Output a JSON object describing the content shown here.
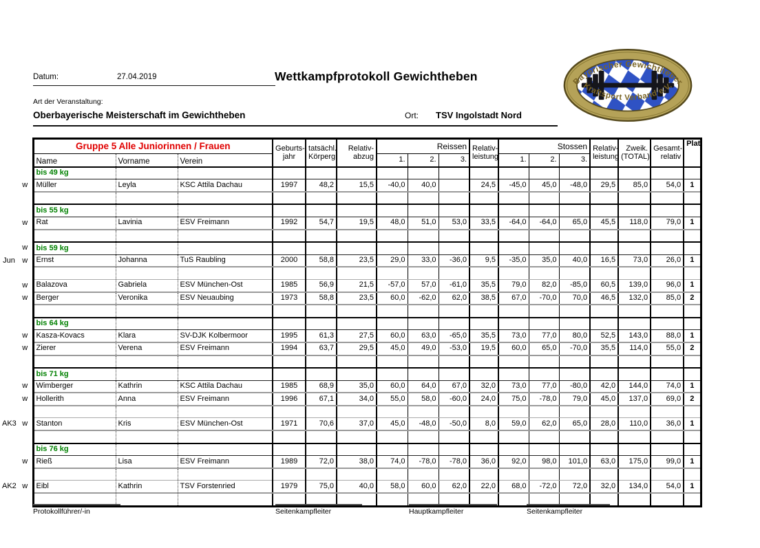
{
  "page": {
    "datum_label": "Datum:",
    "datum_value": "27.04.2019",
    "title": "Wettkampfprotokoll Gewichtheben",
    "art_label": "Art der Veranstaltung:",
    "art_value": "Oberbayerische Meisterschaft im Gewichtheben",
    "ort_label": "Ort:",
    "ort_value": "TSV Ingolstadt Nord"
  },
  "logo": {
    "top_text": "Bayerischer Gewichtheber",
    "bottom_text": "Kraftsport Verband e.V.",
    "colors": {
      "ring_gold": "#b5a258",
      "outline": "#55491c",
      "diamond_blue": "#2f52c4",
      "text_brown": "#7a6526",
      "barbell": "#15151b"
    }
  },
  "table": {
    "group_title": "Gruppe 5 Alle Juniorinnen / Frauen",
    "group_title_color": "#e00000",
    "section_color": "#008000",
    "headers": {
      "name": "Name",
      "vorname": "Vorname",
      "verein": "Verein",
      "jahr": "Geburts-\njahr",
      "gewicht": "tatsächl.\nKörperg.",
      "abzug": "Relativ-\nabzug",
      "reissen": "Reissen",
      "stossen": "Stossen",
      "attempts": [
        "1.",
        "2.",
        "3."
      ],
      "rrel": "Relativ-\nleistung",
      "srel": "Relativ-\nleistung",
      "total": "Zweik.\n(TOTAL)",
      "gesamt": "Gesamt-\nrelativ",
      "platz": "Platz"
    },
    "rows": [
      {
        "type": "section",
        "label": "bis 49 kg"
      },
      {
        "type": "athlete",
        "m2": "w",
        "name": "Müller",
        "vorname": "Leyla",
        "verein": "KSC Attila Dachau",
        "jahr": "1997",
        "gewicht": "48,2",
        "abzug": "15,5",
        "r1": "-40,0",
        "r2": "40,0",
        "r3": "",
        "rrel": "24,5",
        "s1": "-45,0",
        "s2": "45,0",
        "s3": "-48,0",
        "srel": "29,5",
        "total": "85,0",
        "gesamt": "54,0",
        "platz": "1"
      },
      {
        "type": "empty"
      },
      {
        "type": "section",
        "label": "bis 55 kg"
      },
      {
        "type": "athlete",
        "m2": "w",
        "name": "Rat",
        "vorname": "Lavinia",
        "verein": "ESV Freimann",
        "jahr": "1992",
        "gewicht": "54,7",
        "abzug": "19,5",
        "r1": "48,0",
        "r2": "51,0",
        "r3": "53,0",
        "rrel": "33,5",
        "s1": "-64,0",
        "s2": "-64,0",
        "s3": "65,0",
        "srel": "45,5",
        "total": "118,0",
        "gesamt": "79,0",
        "platz": "1"
      },
      {
        "type": "empty"
      },
      {
        "type": "section",
        "label": "bis 59 kg",
        "m2": "w"
      },
      {
        "type": "athlete",
        "m1": "Jun",
        "m2": "w",
        "name": "Ernst",
        "vorname": "Johanna",
        "verein": "TuS Raubling",
        "jahr": "2000",
        "gewicht": "58,8",
        "abzug": "23,5",
        "r1": "29,0",
        "r2": "33,0",
        "r3": "-36,0",
        "rrel": "9,5",
        "s1": "-35,0",
        "s2": "35,0",
        "s3": "40,0",
        "srel": "16,5",
        "total": "73,0",
        "gesamt": "26,0",
        "platz": "1"
      },
      {
        "type": "empty"
      },
      {
        "type": "athlete",
        "m2": "w",
        "name": "Balazova",
        "vorname": "Gabriela",
        "verein": "ESV München-Ost",
        "jahr": "1985",
        "gewicht": "56,9",
        "abzug": "21,5",
        "r1": "-57,0",
        "r2": "57,0",
        "r3": "-61,0",
        "rrel": "35,5",
        "s1": "79,0",
        "s2": "82,0",
        "s3": "-85,0",
        "srel": "60,5",
        "total": "139,0",
        "gesamt": "96,0",
        "platz": "1"
      },
      {
        "type": "athlete",
        "m2": "w",
        "name": "Berger",
        "vorname": "Veronika",
        "verein": "ESV Neuaubing",
        "jahr": "1973",
        "gewicht": "58,8",
        "abzug": "23,5",
        "r1": "60,0",
        "r2": "-62,0",
        "r3": "62,0",
        "rrel": "38,5",
        "s1": "67,0",
        "s2": "-70,0",
        "s3": "70,0",
        "srel": "46,5",
        "total": "132,0",
        "gesamt": "85,0",
        "platz": "2"
      },
      {
        "type": "empty"
      },
      {
        "type": "section",
        "label": "bis 64 kg"
      },
      {
        "type": "athlete",
        "m2": "w",
        "name": "Kasza-Kovacs",
        "vorname": "Klara",
        "verein": "SV-DJK Kolbermoor",
        "jahr": "1995",
        "gewicht": "61,3",
        "abzug": "27,5",
        "r1": "60,0",
        "r2": "63,0",
        "r3": "-65,0",
        "rrel": "35,5",
        "s1": "73,0",
        "s2": "77,0",
        "s3": "80,0",
        "srel": "52,5",
        "total": "143,0",
        "gesamt": "88,0",
        "platz": "1"
      },
      {
        "type": "athlete",
        "m2": "w",
        "name": "Zierer",
        "vorname": "Verena",
        "verein": "ESV Freimann",
        "jahr": "1994",
        "gewicht": "63,7",
        "abzug": "29,5",
        "r1": "45,0",
        "r2": "49,0",
        "r3": "-53,0",
        "rrel": "19,5",
        "s1": "60,0",
        "s2": "65,0",
        "s3": "-70,0",
        "srel": "35,5",
        "total": "114,0",
        "gesamt": "55,0",
        "platz": "2"
      },
      {
        "type": "empty"
      },
      {
        "type": "section",
        "label": "bis 71 kg"
      },
      {
        "type": "athlete",
        "m2": "w",
        "name": "Wimberger",
        "vorname": "Kathrin",
        "verein": "KSC Attila Dachau",
        "jahr": "1985",
        "gewicht": "68,9",
        "abzug": "35,0",
        "r1": "60,0",
        "r2": "64,0",
        "r3": "67,0",
        "rrel": "32,0",
        "s1": "73,0",
        "s2": "77,0",
        "s3": "-80,0",
        "srel": "42,0",
        "total": "144,0",
        "gesamt": "74,0",
        "platz": "1"
      },
      {
        "type": "athlete",
        "m2": "w",
        "name": "Hollerith",
        "vorname": "Anna",
        "verein": "ESV Freimann",
        "jahr": "1996",
        "gewicht": "67,1",
        "abzug": "34,0",
        "r1": "55,0",
        "r2": "58,0",
        "r3": "-60,0",
        "rrel": "24,0",
        "s1": "75,0",
        "s2": "-78,0",
        "s3": "79,0",
        "srel": "45,0",
        "total": "137,0",
        "gesamt": "69,0",
        "platz": "2"
      },
      {
        "type": "empty"
      },
      {
        "type": "athlete",
        "m1": "AK3",
        "m2": "w",
        "name": "Stanton",
        "vorname": "Kris",
        "verein": "ESV München-Ost",
        "jahr": "1971",
        "gewicht": "70,6",
        "abzug": "37,0",
        "r1": "45,0",
        "r2": "-48,0",
        "r3": "-50,0",
        "rrel": "8,0",
        "s1": "59,0",
        "s2": "62,0",
        "s3": "65,0",
        "srel": "28,0",
        "total": "110,0",
        "gesamt": "36,0",
        "platz": "1"
      },
      {
        "type": "empty"
      },
      {
        "type": "section",
        "label": "bis 76 kg"
      },
      {
        "type": "athlete",
        "m2": "w",
        "name": "Rieß",
        "vorname": "Lisa",
        "verein": "ESV Freimann",
        "jahr": "1989",
        "gewicht": "72,0",
        "abzug": "38,0",
        "r1": "74,0",
        "r2": "-78,0",
        "r3": "-78,0",
        "rrel": "36,0",
        "s1": "92,0",
        "s2": "98,0",
        "s3": "101,0",
        "srel": "63,0",
        "total": "175,0",
        "gesamt": "99,0",
        "platz": "1"
      },
      {
        "type": "empty"
      },
      {
        "type": "athlete",
        "m1": "AK2",
        "m2": "w",
        "name": "Eibl",
        "vorname": "Kathrin",
        "verein": "TSV Forstenried",
        "jahr": "1979",
        "gewicht": "75,0",
        "abzug": "40,0",
        "r1": "58,0",
        "r2": "60,0",
        "r3": "62,0",
        "rrel": "22,0",
        "s1": "68,0",
        "s2": "-72,0",
        "s3": "72,0",
        "srel": "32,0",
        "total": "134,0",
        "gesamt": "54,0",
        "platz": "1"
      },
      {
        "type": "empty"
      }
    ]
  },
  "footer": {
    "signatures": [
      "Protokollführer/-in",
      "Seitenkampfleiter",
      "Hauptkampfleiter",
      "Seitenkampfleiter"
    ]
  }
}
